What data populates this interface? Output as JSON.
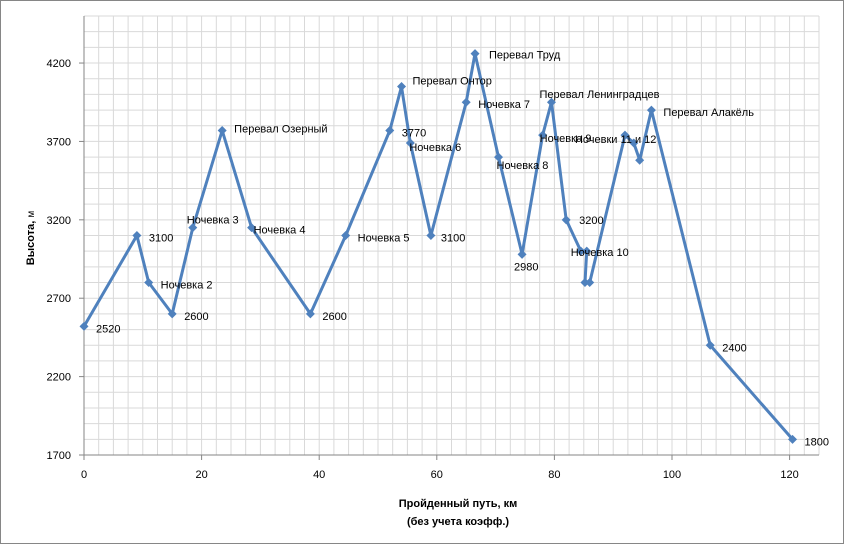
{
  "chart_data": {
    "type": "line",
    "title": "",
    "xlabel": "Пройденный путь, км",
    "xlabel_sub": "(без учета коэфф.)",
    "ylabel": "Высота,",
    "yunit": "м",
    "xlim": [
      0,
      125
    ],
    "ylim": [
      1700,
      4500
    ],
    "x_major_step": 20,
    "x_minor_step": 2.5,
    "y_major_step": 500,
    "y_minor_step": 100,
    "x_ticks": [
      "0",
      "20",
      "40",
      "60",
      "80",
      "100",
      "120"
    ],
    "y_ticks": [
      "1700",
      "2200",
      "2700",
      "3200",
      "3700",
      "4200"
    ],
    "grid": true,
    "legend": "none",
    "line_color": "#4f81bd",
    "grid_color": "#d9d9d9",
    "series": [
      {
        "x": [
          0,
          9,
          11,
          15,
          18.5,
          23.5,
          28.5,
          38.5,
          44.5,
          52,
          54,
          55.5,
          59,
          65,
          66.5,
          70.5,
          74.5,
          78,
          79.5,
          82,
          84.5,
          85.5,
          85.2,
          86,
          92,
          93.5,
          94.5,
          96.5,
          106.5,
          120.5
        ],
        "y": [
          2520,
          3100,
          2800,
          2600,
          3150,
          3770,
          3150,
          2600,
          3100,
          3770,
          4050,
          3690,
          3100,
          3950,
          4260,
          3600,
          2980,
          3740,
          3950,
          3200,
          3000,
          3000,
          2800,
          2800,
          3740,
          3690,
          3580,
          3900,
          2400,
          1800
        ]
      }
    ],
    "annotations": [
      {
        "text": "2520",
        "x": 0,
        "y": 2520
      },
      {
        "text": "3100",
        "x": 9,
        "y": 3100
      },
      {
        "text": "Ночевка 2",
        "x": 11,
        "y": 2800
      },
      {
        "text": "2600",
        "x": 15,
        "y": 2600
      },
      {
        "text": "Ночевка 3",
        "x": 18.5,
        "y": 3150
      },
      {
        "text": "Перевал Озерный",
        "x": 23.5,
        "y": 3770
      },
      {
        "text": "Ночевка 4",
        "x": 28.5,
        "y": 3150
      },
      {
        "text": "2600",
        "x": 38.5,
        "y": 2600
      },
      {
        "text": "Ночевка 5",
        "x": 44.5,
        "y": 3100
      },
      {
        "text": "3770",
        "x": 52,
        "y": 3770
      },
      {
        "text": "Перевал Онтор",
        "x": 54,
        "y": 4050
      },
      {
        "text": "Ночевка 6",
        "x": 55.5,
        "y": 3690
      },
      {
        "text": "3100",
        "x": 59,
        "y": 3100
      },
      {
        "text": "Ночевка 7",
        "x": 65,
        "y": 3950
      },
      {
        "text": "Перевал Труд",
        "x": 66.5,
        "y": 4260
      },
      {
        "text": "Ночевка 8",
        "x": 70.5,
        "y": 3600
      },
      {
        "text": "2980",
        "x": 74.5,
        "y": 2980
      },
      {
        "text": "Ночевка 9",
        "x": 78,
        "y": 3740
      },
      {
        "text": "Перевал Ленинградцев",
        "x": 79.5,
        "y": 3950
      },
      {
        "text": "3200",
        "x": 82,
        "y": 3200
      },
      {
        "text": "Ночевка 10",
        "x": 85.5,
        "y": 3000
      },
      {
        "text": "Ночевки 11 и 12",
        "x": 92,
        "y": 3740
      },
      {
        "text": "Перевал Алакёль",
        "x": 96.5,
        "y": 3900
      },
      {
        "text": "2400",
        "x": 106.5,
        "y": 2400
      },
      {
        "text": "1800",
        "x": 120.5,
        "y": 1800
      }
    ]
  }
}
